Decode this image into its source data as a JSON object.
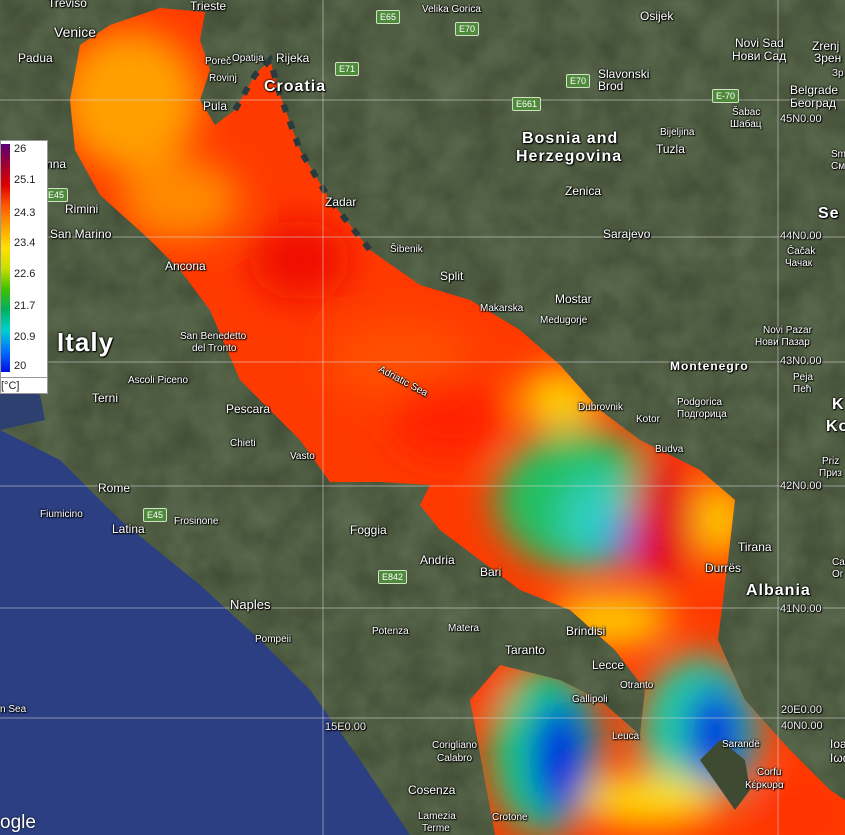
{
  "map": {
    "colors": {
      "land": "#3e4a32",
      "tyrrhenian_sea": "#2b3f82",
      "warm": "#ff2a00",
      "cool": "#0020e0"
    },
    "legend": {
      "ticks": [
        "26",
        "25.1",
        "24.3",
        "23.4",
        "22.6",
        "21.7",
        "20.9",
        "20"
      ],
      "unit": "[°C]",
      "min": 20,
      "max": 26
    },
    "grid_labels": [
      "45N0.00",
      "44N0.00",
      "43N0.00",
      "42N0.00",
      "41N0.00",
      "40N0.00",
      "15E0.00",
      "20E0.00"
    ],
    "roads": [
      "E65",
      "E70",
      "E71",
      "E70",
      "E661",
      "E-70",
      "E45",
      "E45",
      "E842"
    ],
    "places": [
      "Treviso",
      "Trieste",
      "Velika Gorica",
      "Osijek",
      "Novi Sad",
      "Нови Сад",
      "Zrenj",
      "Зрен",
      "Venice",
      "Padua",
      "Poreč",
      "Opatija",
      "Rijeka",
      "Rovinj",
      "Slavonski",
      "Brod",
      "Belgrade",
      "Београд",
      "Šabac",
      "Шабац",
      "Pula",
      "Bijeljina",
      "Tuzla",
      "Ravenna",
      "Rimini",
      "San Marino",
      "Zenica",
      "Zadar",
      "Šibenik",
      "Sarajevo",
      "Čačak",
      "Чачак",
      "Ancona",
      "Split",
      "Mostar",
      "Makarska",
      "Medugorje",
      "San Benedetto",
      "del Tronto",
      "Novi Pazar",
      "Нови Пазар",
      "Ascoli Piceno",
      "Terni",
      "Pescara",
      "Dubrovnik",
      "Kotor",
      "Podgorica",
      "Подгорица",
      "Peja",
      "Пећ",
      "Chieti",
      "Vasto",
      "Budva",
      "Rome",
      "Fiumicino",
      "Latina",
      "Frosinone",
      "Foggia",
      "Andria",
      "Bari",
      "Tirana",
      "Durrës",
      "Naples",
      "Pompeii",
      "Potenza",
      "Matera",
      "Brindisi",
      "Taranto",
      "Lecce",
      "Gallipoli",
      "Otranto",
      "Leuca",
      "Corigliano",
      "Calabro",
      "Cosenza",
      "Lamezia",
      "Terme",
      "Crotone",
      "Corfu",
      "Κέρκυρα",
      "Sarandë",
      "Ioa",
      "Iωα",
      "Sm",
      "См",
      "Priz",
      "Приз",
      "Ko",
      "Ca",
      "Or",
      "Зр"
    ],
    "countries": [
      "Croatia",
      "Bosnia and",
      "Herzegovina",
      "Italy",
      "Montenegro",
      "Albania",
      "Se",
      "K"
    ],
    "seas": [
      "Adriatic Sea",
      "n Sea"
    ],
    "attribution": "ogle"
  }
}
